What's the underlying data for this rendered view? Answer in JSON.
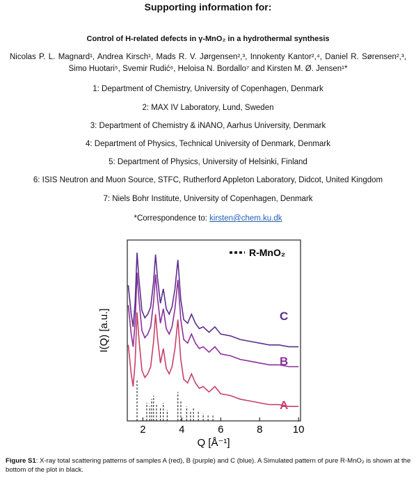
{
  "header": {
    "title": "Supporting information for:",
    "paper_title": "Control of H-related defects in γ-MnO₂ in a hydrothermal synthesis"
  },
  "authors": "Nicolas P. L. Magnard¹, Andrea Kirsch¹, Mads R. V. Jørgensen²,³, Innokenty Kantor²,⁴, Daniel R. Sørensen²,³, Simo Huotari⁵, Svemir Rudić⁶, Heloisa N. Bordallo⁷ and Kirsten M. Ø. Jensen¹*",
  "affiliations": [
    "1: Department of Chemistry, University of Copenhagen, Denmark",
    "2: MAX IV Laboratory, Lund, Sweden",
    "3: Department of Chemistry & iNANO, Aarhus University, Denmark",
    "4: Department of Physics, Technical University of Denmark, Denmark",
    "5: Department of Physics, University of Helsinki, Finland",
    "6: ISIS Neutron and Muon Source, STFC, Rutherford Appleton Laboratory, Didcot, United Kingdom",
    "7: Niels Bohr Institute, University of Copenhagen, Denmark"
  ],
  "correspondence": {
    "label": "*Correspondence to:",
    "email": "kirsten@chem.ku.dk"
  },
  "chart_data": {
    "type": "line",
    "x_label": "Q [Å⁻¹]",
    "y_label": "I(Q) [a.u.]",
    "xlim": [
      1.2,
      10.1
    ],
    "xticks": [
      2,
      4,
      6,
      8,
      10
    ],
    "ylim": [
      0,
      10
    ],
    "x": [
      1.25,
      1.4,
      1.5,
      1.6,
      1.7,
      1.8,
      1.95,
      2.1,
      2.25,
      2.4,
      2.55,
      2.65,
      2.75,
      2.9,
      3.05,
      3.2,
      3.35,
      3.5,
      3.65,
      3.8,
      3.95,
      4.1,
      4.3,
      4.5,
      4.7,
      4.9,
      5.1,
      5.4,
      5.7,
      6.0,
      6.5,
      7.0,
      7.5,
      8.0,
      8.5,
      9.0,
      9.5,
      10.0
    ],
    "series": [
      {
        "name": "A",
        "color": "#c8406a",
        "values": [
          4.2,
          2.6,
          1.9,
          3.2,
          6.0,
          4.5,
          2.8,
          2.4,
          2.6,
          3.0,
          4.4,
          5.9,
          4.6,
          3.2,
          4.0,
          2.9,
          2.6,
          3.0,
          4.0,
          5.6,
          3.4,
          2.3,
          2.1,
          2.6,
          2.1,
          1.8,
          1.9,
          1.6,
          1.9,
          1.5,
          1.4,
          1.2,
          1.1,
          1.0,
          0.9,
          0.9,
          0.8,
          0.8
        ]
      },
      {
        "name": "B",
        "color": "#8a2f9a",
        "values": [
          6.4,
          4.8,
          4.1,
          5.4,
          8.2,
          6.7,
          5.0,
          4.6,
          4.8,
          5.2,
          6.6,
          8.1,
          6.8,
          5.4,
          6.2,
          5.1,
          4.8,
          5.2,
          6.2,
          7.8,
          5.6,
          4.5,
          4.3,
          4.8,
          4.3,
          4.0,
          4.1,
          3.8,
          4.1,
          3.7,
          3.6,
          3.4,
          3.3,
          3.2,
          3.1,
          3.1,
          3.0,
          3.0
        ]
      },
      {
        "name": "C",
        "color": "#5a2e8c",
        "values": [
          7.5,
          5.9,
          5.2,
          6.5,
          9.3,
          7.8,
          6.1,
          5.7,
          5.9,
          6.3,
          7.7,
          9.2,
          7.9,
          6.5,
          7.3,
          6.2,
          5.9,
          6.3,
          7.3,
          8.9,
          6.7,
          5.6,
          5.4,
          5.9,
          5.4,
          5.1,
          5.2,
          4.9,
          5.2,
          4.8,
          4.7,
          4.5,
          4.4,
          4.3,
          4.2,
          4.2,
          4.1,
          4.1
        ]
      },
      {
        "name": "R-MnO₂",
        "type": "stick",
        "color": "#111111",
        "x": [
          1.7,
          2.2,
          2.35,
          2.45,
          2.55,
          2.7,
          2.9,
          3.05,
          3.25,
          3.8,
          3.95,
          4.25,
          4.45,
          4.6,
          4.85,
          5.1,
          5.35,
          5.6
        ],
        "values": [
          2.3,
          1.0,
          0.8,
          1.2,
          1.4,
          0.9,
          0.7,
          1.0,
          0.6,
          1.6,
          1.1,
          0.8,
          0.5,
          0.7,
          0.5,
          0.4,
          0.3,
          0.3
        ]
      }
    ]
  },
  "caption": {
    "label": "Figure S1",
    "text": ": X-ray total scattering patterns of samples A (red), B (purple) and C (blue). A Simulated pattern of pure R-MnO₂ is shown at the bottom of the plot in black."
  }
}
